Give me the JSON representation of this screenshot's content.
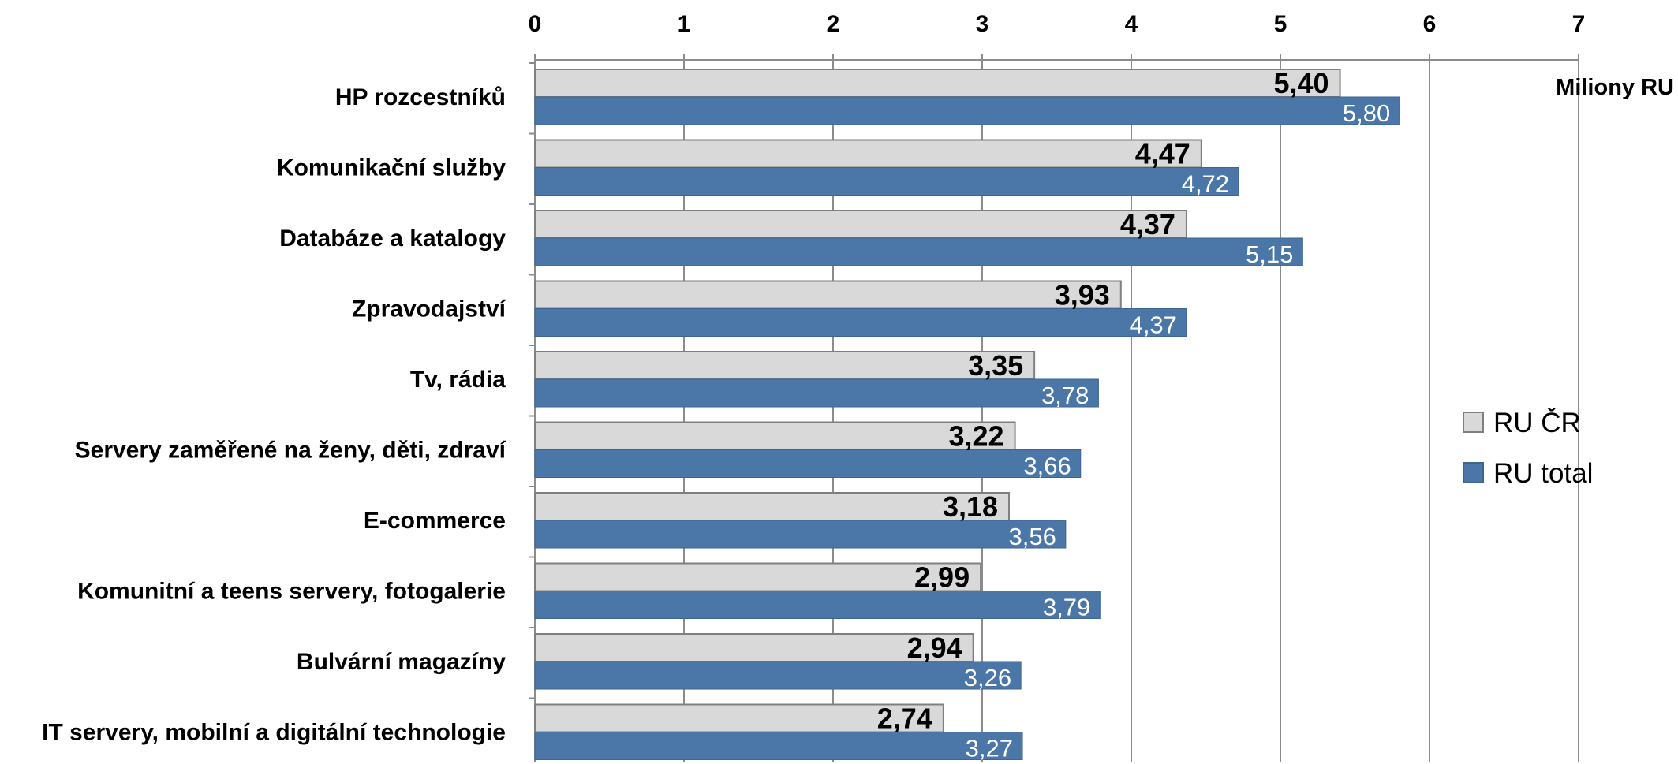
{
  "chart_data": {
    "type": "bar",
    "orientation": "horizontal",
    "unit_label": "Miliony RU",
    "categories": [
      "HP rozcestníků",
      "Komunikační služby",
      "Databáze a katalogy",
      "Zpravodajství",
      "Tv, rádia",
      "Servery zaměřené na ženy, děti, zdraví",
      "E-commerce",
      "Komunitní a teens servery, fotogalerie",
      "Bulvární magazíny",
      "IT servery, mobilní a digitální technologie"
    ],
    "series": [
      {
        "name": "RU ČR",
        "color": "#d9d9d9",
        "values": [
          5.4,
          4.47,
          4.37,
          3.93,
          3.35,
          3.22,
          3.18,
          2.99,
          2.94,
          2.74
        ],
        "labels": [
          "5,40",
          "4,47",
          "4,37",
          "3,93",
          "3,35",
          "3,22",
          "3,18",
          "2,99",
          "2,94",
          "2,74"
        ]
      },
      {
        "name": "RU total",
        "color": "#4a76a8",
        "values": [
          5.8,
          4.72,
          5.15,
          4.37,
          3.78,
          3.66,
          3.56,
          3.79,
          3.26,
          3.27
        ],
        "labels": [
          "5,80",
          "4,72",
          "5,15",
          "4,37",
          "3,78",
          "3,66",
          "3,56",
          "3,79",
          "3,26",
          "3,27"
        ]
      }
    ],
    "x_ticks": [
      "0",
      "1",
      "2",
      "3",
      "4",
      "5",
      "6",
      "7"
    ],
    "xlim": [
      0,
      7
    ],
    "grid": true,
    "axis_position": "top",
    "legend_position": "right"
  }
}
